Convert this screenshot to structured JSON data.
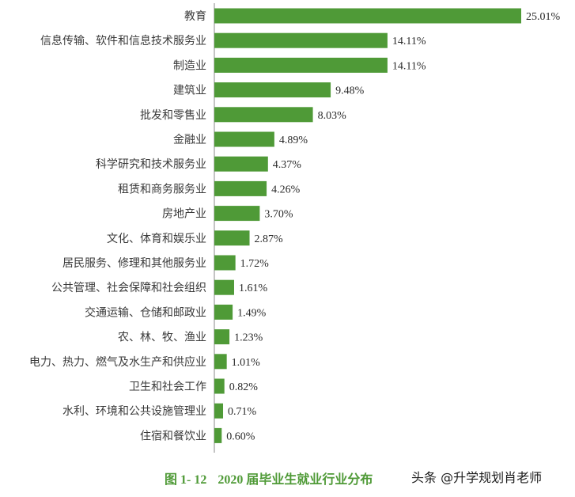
{
  "chart_data": {
    "type": "bar",
    "orientation": "horizontal",
    "categories": [
      "教育",
      "信息传输、软件和信息技术服务业",
      "制造业",
      "建筑业",
      "批发和零售业",
      "金融业",
      "科学研究和技术服务业",
      "租赁和商务服务业",
      "房地产业",
      "文化、体育和娱乐业",
      "居民服务、修理和其他服务业",
      "公共管理、社会保障和社会组织",
      "交通运输、仓储和邮政业",
      "农、林、牧、渔业",
      "电力、热力、燃气及水生产和供应业",
      "卫生和社会工作",
      "水利、环境和公共设施管理业",
      "住宿和餐饮业"
    ],
    "values": [
      25.01,
      14.11,
      14.11,
      9.48,
      8.03,
      4.89,
      4.37,
      4.26,
      3.7,
      2.87,
      1.72,
      1.61,
      1.49,
      1.23,
      1.01,
      0.82,
      0.71,
      0.6
    ],
    "value_labels": [
      "25.01%",
      "14.11%",
      "14.11%",
      "9.48%",
      "8.03%",
      "4.89%",
      "4.37%",
      "4.26%",
      "3.70%",
      "2.87%",
      "1.72%",
      "1.61%",
      "1.49%",
      "1.23%",
      "1.01%",
      "0.82%",
      "0.71%",
      "0.60%"
    ],
    "xlim": [
      0,
      25.01
    ],
    "grid": false,
    "legend": "none",
    "bar_color": "#4f9a37"
  },
  "caption": {
    "figure_number": "图 1- 12",
    "title": "2020 届毕业生就业行业分布"
  },
  "watermark": "头条 @升学规划肖老师"
}
